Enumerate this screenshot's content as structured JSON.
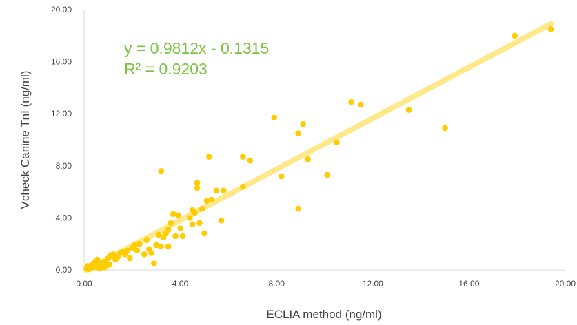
{
  "chart_data": {
    "type": "scatter",
    "title": "",
    "xlabel": "ECLIA method (ng/ml)",
    "ylabel": "Vcheck Canine TnI (ng/ml)",
    "xlim": [
      0,
      20
    ],
    "ylim": [
      0,
      20
    ],
    "x_ticks": [
      "0.00",
      "4.00",
      "8.00",
      "12.00",
      "16.00",
      "20.00"
    ],
    "y_ticks": [
      "0.00",
      "4.00",
      "8.00",
      "12.00",
      "16.00",
      "20.00"
    ],
    "grid": false,
    "legend": "none",
    "colors": {
      "points": "#FFCC00",
      "trendline": "#FFE88A",
      "equation": "#7DC242",
      "axis": "#D9D9D9",
      "text": "#404040"
    },
    "trendline": {
      "slope": 0.9812,
      "intercept": -0.1315,
      "x_range": [
        0.1,
        19.4
      ],
      "equation_text": "y = 0.9812x - 0.1315",
      "r2_text": "R² = 0.9203"
    },
    "series": [
      {
        "points": [
          [
            0.1,
            0.1
          ],
          [
            0.15,
            0.3
          ],
          [
            0.2,
            0.05
          ],
          [
            0.25,
            0.2
          ],
          [
            0.3,
            0.15
          ],
          [
            0.35,
            0.4
          ],
          [
            0.4,
            0.3
          ],
          [
            0.45,
            0.6
          ],
          [
            0.5,
            0.2
          ],
          [
            0.55,
            0.8
          ],
          [
            0.6,
            0.5
          ],
          [
            0.65,
            0.1
          ],
          [
            0.7,
            0.4
          ],
          [
            0.75,
            0.3
          ],
          [
            0.8,
            0.6
          ],
          [
            0.85,
            0.2
          ],
          [
            0.9,
            0.5
          ],
          [
            1.0,
            0.9
          ],
          [
            1.05,
            0.4
          ],
          [
            1.1,
            1.1
          ],
          [
            1.2,
            1.2
          ],
          [
            1.3,
            0.8
          ],
          [
            1.4,
            1.0
          ],
          [
            1.5,
            1.3
          ],
          [
            1.6,
            1.4
          ],
          [
            1.7,
            1.2
          ],
          [
            1.8,
            1.5
          ],
          [
            1.9,
            0.9
          ],
          [
            2.0,
            1.7
          ],
          [
            2.1,
            1.9
          ],
          [
            2.2,
            1.5
          ],
          [
            2.3,
            2.0
          ],
          [
            2.5,
            1.2
          ],
          [
            2.6,
            2.3
          ],
          [
            2.7,
            1.6
          ],
          [
            2.8,
            1.3
          ],
          [
            2.9,
            0.5
          ],
          [
            3.0,
            1.9
          ],
          [
            3.1,
            2.7
          ],
          [
            3.2,
            1.8
          ],
          [
            3.3,
            2.5
          ],
          [
            3.4,
            2.8
          ],
          [
            3.5,
            3.1
          ],
          [
            3.5,
            1.8
          ],
          [
            3.6,
            3.6
          ],
          [
            3.7,
            4.3
          ],
          [
            3.8,
            2.6
          ],
          [
            3.9,
            4.2
          ],
          [
            4.0,
            3.2
          ],
          [
            4.1,
            2.6
          ],
          [
            3.2,
            7.6
          ],
          [
            4.4,
            4.0
          ],
          [
            4.5,
            4.6
          ],
          [
            4.5,
            3.5
          ],
          [
            4.6,
            4.4
          ],
          [
            4.7,
            6.3
          ],
          [
            4.7,
            6.7
          ],
          [
            4.8,
            3.6
          ],
          [
            4.9,
            4.7
          ],
          [
            5.0,
            2.8
          ],
          [
            5.1,
            5.3
          ],
          [
            5.3,
            5.4
          ],
          [
            5.2,
            8.7
          ],
          [
            5.5,
            6.1
          ],
          [
            5.7,
            3.8
          ],
          [
            5.8,
            6.1
          ],
          [
            6.6,
            8.7
          ],
          [
            6.6,
            6.4
          ],
          [
            6.9,
            8.4
          ],
          [
            7.9,
            11.7
          ],
          [
            8.2,
            7.2
          ],
          [
            8.9,
            10.5
          ],
          [
            8.9,
            4.7
          ],
          [
            9.1,
            11.2
          ],
          [
            9.3,
            8.5
          ],
          [
            10.1,
            7.3
          ],
          [
            10.5,
            9.8
          ],
          [
            11.1,
            12.9
          ],
          [
            11.5,
            12.7
          ],
          [
            13.5,
            12.3
          ],
          [
            15.0,
            10.9
          ],
          [
            17.9,
            18.0
          ],
          [
            19.4,
            18.5
          ]
        ]
      }
    ]
  }
}
